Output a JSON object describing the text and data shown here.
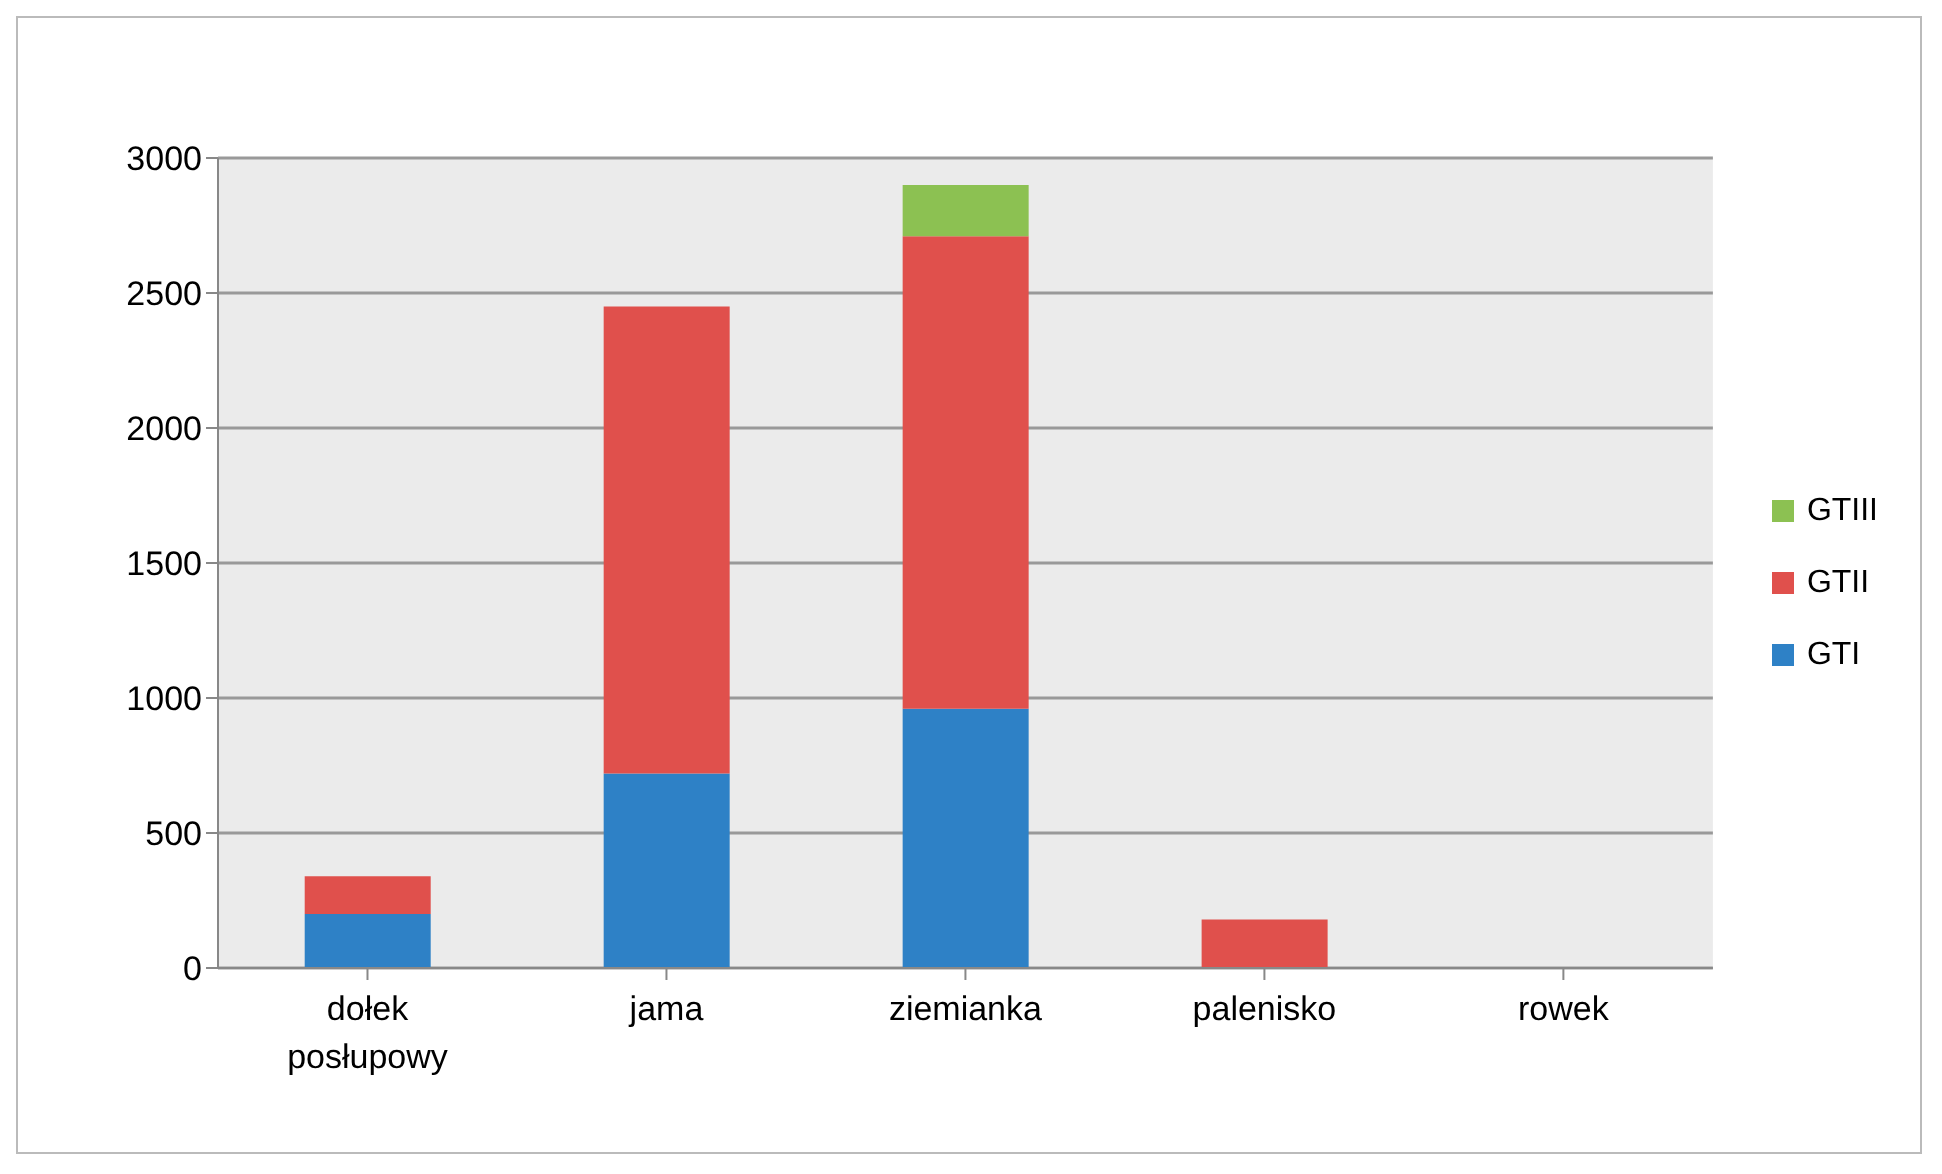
{
  "chart_data": {
    "type": "bar",
    "stacked": true,
    "categories": [
      "dołek posłupowy",
      "jama",
      "ziemianka",
      "palenisko",
      "rowek"
    ],
    "series": [
      {
        "name": "GTI",
        "color": "#2e81c6",
        "values": [
          200,
          720,
          960,
          0,
          0
        ]
      },
      {
        "name": "GTII",
        "color": "#e0504c",
        "values": [
          140,
          1730,
          1750,
          180,
          0
        ]
      },
      {
        "name": "GTIII",
        "color": "#8cc152",
        "values": [
          0,
          0,
          190,
          0,
          0
        ]
      }
    ],
    "ylim": [
      0,
      3000
    ],
    "yticks": [
      0,
      500,
      1000,
      1500,
      2000,
      2500,
      3000
    ],
    "grid": "y",
    "legend": "right"
  }
}
